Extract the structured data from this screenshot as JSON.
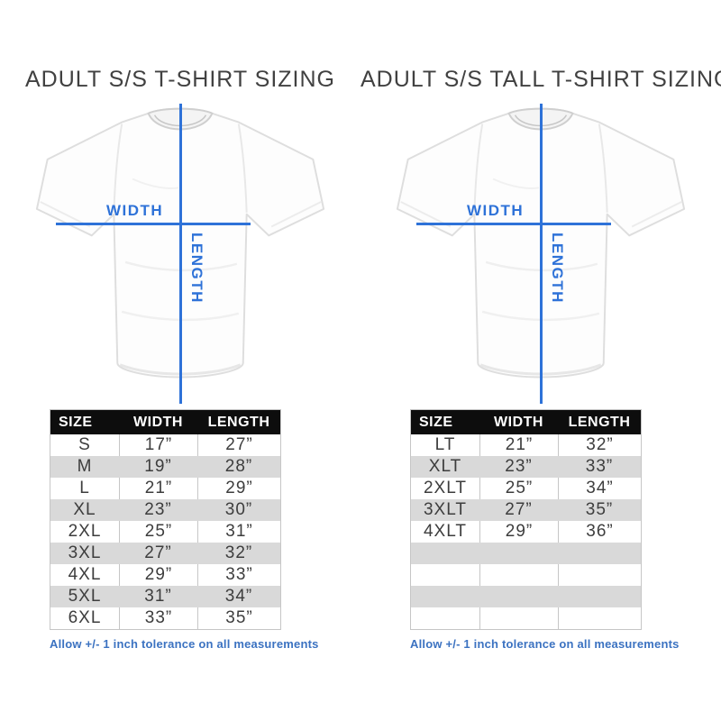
{
  "colors": {
    "accent_blue": "#2e72d8",
    "note_blue": "#3b72c1",
    "table_header_bg": "#0d0d0d",
    "row_stripe_gray": "#d9d9d9"
  },
  "panels": [
    {
      "title": "ADULT S/S T-SHIRT SIZING",
      "diagram": {
        "width_label": "WIDTH",
        "length_label": "LENGTH"
      },
      "table": {
        "headers": [
          "SIZE",
          "WIDTH",
          "LENGTH"
        ],
        "rows": [
          [
            "S",
            "17”",
            "27”"
          ],
          [
            "M",
            "19”",
            "28”"
          ],
          [
            "L",
            "21”",
            "29”"
          ],
          [
            "XL",
            "23”",
            "30”"
          ],
          [
            "2XL",
            "25”",
            "31”"
          ],
          [
            "3XL",
            "27”",
            "32”"
          ],
          [
            "4XL",
            "29”",
            "33”"
          ],
          [
            "5XL",
            "31”",
            "34”"
          ],
          [
            "6XL",
            "33”",
            "35”"
          ]
        ],
        "empty_rows": 0
      },
      "note": "Allow +/- 1 inch tolerance on all measurements"
    },
    {
      "title": "ADULT S/S TALL T-SHIRT SIZING",
      "diagram": {
        "width_label": "WIDTH",
        "length_label": "LENGTH"
      },
      "table": {
        "headers": [
          "SIZE",
          "WIDTH",
          "LENGTH"
        ],
        "rows": [
          [
            "LT",
            "21”",
            "32”"
          ],
          [
            "XLT",
            "23”",
            "33”"
          ],
          [
            "2XLT",
            "25”",
            "34”"
          ],
          [
            "3XLT",
            "27”",
            "35”"
          ],
          [
            "4XLT",
            "29”",
            "36”"
          ]
        ],
        "empty_rows": 4
      },
      "note": "Allow +/- 1 inch tolerance on all measurements"
    }
  ]
}
